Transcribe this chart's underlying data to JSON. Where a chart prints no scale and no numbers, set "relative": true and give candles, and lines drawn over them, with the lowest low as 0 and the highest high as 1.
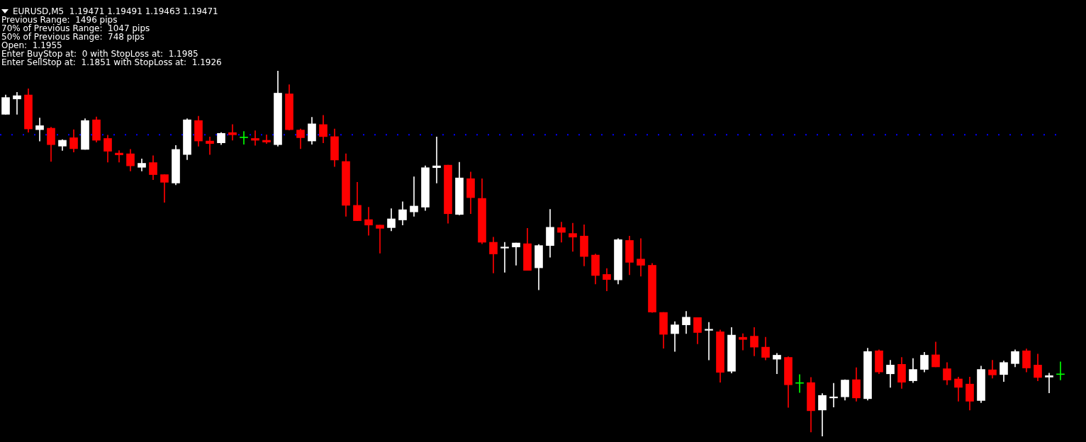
{
  "chart_data": {
    "type": "candlestick",
    "relative": true,
    "title": "EURUSD,M5  1.19471 1.19491 1.19463 1.19471",
    "annotations": [
      "Previous Range:  1496 pips",
      "70% of Previous Range:  1047 pips",
      "50% of Previous Range:  748 pips",
      "Open:  1.1955",
      "Enter BuyStop at:  0 with StopLoss at:  1.1985",
      "Enter SellStop at:  1.1851 with StopLoss at:  1.1926"
    ],
    "categories": [
      null,
      null,
      null,
      null,
      null,
      null,
      null,
      null,
      null,
      null,
      null,
      null,
      null,
      null,
      null,
      null,
      null,
      null,
      null,
      null,
      null,
      null,
      null,
      null,
      null,
      null,
      null,
      null,
      null,
      null,
      null,
      null,
      null,
      null,
      null,
      null,
      null,
      null,
      null,
      null,
      null,
      null,
      null,
      null,
      null,
      null,
      null,
      null,
      null,
      null,
      null,
      null,
      null,
      null,
      null,
      null,
      null,
      null,
      null,
      null,
      null,
      null,
      null,
      null,
      null,
      null,
      null,
      null,
      null,
      null,
      null,
      null,
      null,
      null,
      null,
      null,
      null,
      null,
      null,
      null,
      null,
      null,
      null,
      null,
      null,
      null,
      null,
      null,
      null,
      null,
      null,
      null,
      null,
      null
    ],
    "ohlc": [
      [
        0.881,
        0.934,
        0.881,
        0.927
      ],
      [
        0.923,
        0.941,
        0.881,
        0.932
      ],
      [
        0.934,
        0.951,
        0.832,
        0.841
      ],
      [
        0.839,
        0.871,
        0.808,
        0.85
      ],
      [
        0.843,
        0.846,
        0.752,
        0.798
      ],
      [
        0.794,
        0.812,
        0.782,
        0.81
      ],
      [
        0.817,
        0.839,
        0.778,
        0.787
      ],
      [
        0.785,
        0.869,
        0.785,
        0.864
      ],
      [
        0.866,
        0.874,
        0.805,
        0.81
      ],
      [
        0.815,
        0.824,
        0.75,
        0.78
      ],
      [
        0.775,
        0.782,
        0.75,
        0.77
      ],
      [
        0.773,
        0.785,
        0.726,
        0.74
      ],
      [
        0.736,
        0.759,
        0.726,
        0.747
      ],
      [
        0.749,
        0.768,
        0.702,
        0.716
      ],
      [
        0.716,
        0.716,
        0.64,
        0.695
      ],
      [
        0.693,
        0.796,
        0.688,
        0.785
      ],
      [
        0.771,
        0.869,
        0.757,
        0.866
      ],
      [
        0.864,
        0.876,
        0.794,
        0.808
      ],
      [
        0.808,
        0.819,
        0.771,
        0.801
      ],
      [
        0.803,
        0.831,
        0.798,
        0.829
      ],
      [
        0.831,
        0.853,
        0.81,
        0.825
      ],
      [
        0.817,
        0.834,
        0.799,
        0.817
      ],
      [
        0.815,
        0.836,
        0.796,
        0.81
      ],
      [
        0.81,
        0.825,
        0.801,
        0.805
      ],
      [
        0.798,
        1,
        0.794,
        0.939
      ],
      [
        0.937,
        0.962,
        0.838,
        0.839
      ],
      [
        0.838,
        0.841,
        0.787,
        0.817
      ],
      [
        0.808,
        0.873,
        0.799,
        0.855
      ],
      [
        0.853,
        0.878,
        0.803,
        0.82
      ],
      [
        0.82,
        0.841,
        0.738,
        0.756
      ],
      [
        0.752,
        0.773,
        0.602,
        0.632
      ],
      [
        0.632,
        0.695,
        0.59,
        0.59
      ],
      [
        0.593,
        0.627,
        0.55,
        0.578
      ],
      [
        0.578,
        0.578,
        0.501,
        0.569
      ],
      [
        0.571,
        0.623,
        0.562,
        0.595
      ],
      [
        0.592,
        0.642,
        0.578,
        0.62
      ],
      [
        0.614,
        0.71,
        0.602,
        0.63
      ],
      [
        0.627,
        0.74,
        0.618,
        0.735
      ],
      [
        0.735,
        0.819,
        0.693,
        0.74
      ],
      [
        0.742,
        0.742,
        0.583,
        0.609
      ],
      [
        0.607,
        0.75,
        0.606,
        0.707
      ],
      [
        0.705,
        0.723,
        0.609,
        0.653
      ],
      [
        0.651,
        0.705,
        0.527,
        0.531
      ],
      [
        0.531,
        0.545,
        0.447,
        0.499
      ],
      [
        0.515,
        0.531,
        0.449,
        0.518
      ],
      [
        0.518,
        0.529,
        0.468,
        0.529
      ],
      [
        0.527,
        0.569,
        0.454,
        0.454
      ],
      [
        0.461,
        0.525,
        0.401,
        0.522
      ],
      [
        0.522,
        0.621,
        0.49,
        0.572
      ],
      [
        0.571,
        0.586,
        0.531,
        0.558
      ],
      [
        0.555,
        0.583,
        0.506,
        0.545
      ],
      [
        0.548,
        0.579,
        0.466,
        0.492
      ],
      [
        0.496,
        0.499,
        0.417,
        0.44
      ],
      [
        0.443,
        0.459,
        0.398,
        0.429
      ],
      [
        0.428,
        0.541,
        0.417,
        0.538
      ],
      [
        0.536,
        0.548,
        0.442,
        0.476
      ],
      [
        0.485,
        0.541,
        0.438,
        0.468
      ],
      [
        0.468,
        0.473,
        0.339,
        0.34
      ],
      [
        0.339,
        0.339,
        0.241,
        0.279
      ],
      [
        0.281,
        0.314,
        0.232,
        0.305
      ],
      [
        0.305,
        0.342,
        0.281,
        0.326
      ],
      [
        0.325,
        0.325,
        0.253,
        0.284
      ],
      [
        0.29,
        0.312,
        0.209,
        0.293
      ],
      [
        0.286,
        0.291,
        0.148,
        0.175
      ],
      [
        0.178,
        0.298,
        0.173,
        0.277
      ],
      [
        0.271,
        0.281,
        0.236,
        0.265
      ],
      [
        0.274,
        0.298,
        0.22,
        0.244
      ],
      [
        0.244,
        0.271,
        0.209,
        0.216
      ],
      [
        0.211,
        0.227,
        0.171,
        0.222
      ],
      [
        0.216,
        0.218,
        0.079,
        0.141
      ],
      [
        0.145,
        0.169,
        0.12,
        0.145
      ],
      [
        0.147,
        0.161,
        0.012,
        0.07
      ],
      [
        0.072,
        0.117,
        0,
        0.112
      ],
      [
        0.105,
        0.145,
        0.08,
        0.108
      ],
      [
        0.108,
        0.155,
        0.099,
        0.154
      ],
      [
        0.155,
        0.188,
        0.096,
        0.105
      ],
      [
        0.103,
        0.241,
        0.099,
        0.232
      ],
      [
        0.234,
        0.237,
        0.171,
        0.176
      ],
      [
        0.171,
        0.208,
        0.134,
        0.195
      ],
      [
        0.197,
        0.216,
        0.131,
        0.148
      ],
      [
        0.152,
        0.213,
        0.147,
        0.183
      ],
      [
        0.183,
        0.23,
        0.176,
        0.222
      ],
      [
        0.223,
        0.258,
        0.19,
        0.19
      ],
      [
        0.185,
        0.202,
        0.141,
        0.154
      ],
      [
        0.157,
        0.162,
        0.096,
        0.134
      ],
      [
        0.143,
        0.162,
        0.072,
        0.096
      ],
      [
        0.098,
        0.192,
        0.092,
        0.183
      ],
      [
        0.182,
        0.208,
        0.159,
        0.168
      ],
      [
        0.169,
        0.206,
        0.15,
        0.202
      ],
      [
        0.199,
        0.237,
        0.19,
        0.232
      ],
      [
        0.234,
        0.239,
        0.176,
        0.187
      ],
      [
        0.195,
        0.225,
        0.152,
        0.161
      ],
      [
        0.162,
        0.173,
        0.119,
        0.166
      ],
      [
        0.169,
        0.204,
        0.154,
        0.169
      ]
    ],
    "colors": [
      "#ffffff",
      "#ffffff",
      "#ff0000",
      "#ffffff",
      "#ff0000",
      "#ffffff",
      "#ff0000",
      "#ffffff",
      "#ff0000",
      "#ff0000",
      "#ff0000",
      "#ff0000",
      "#ffffff",
      "#ff0000",
      "#ff0000",
      "#ffffff",
      "#ffffff",
      "#ff0000",
      "#ff0000",
      "#ffffff",
      "#ff0000",
      "#00ff00",
      "#ff0000",
      "#ff0000",
      "#ffffff",
      "#ff0000",
      "#ff0000",
      "#ffffff",
      "#ff0000",
      "#ff0000",
      "#ff0000",
      "#ff0000",
      "#ff0000",
      "#ff0000",
      "#ffffff",
      "#ffffff",
      "#ffffff",
      "#ffffff",
      "#ffffff",
      "#ff0000",
      "#ffffff",
      "#ff0000",
      "#ff0000",
      "#ff0000",
      "#ffffff",
      "#ffffff",
      "#ff0000",
      "#ffffff",
      "#ffffff",
      "#ff0000",
      "#ff0000",
      "#ff0000",
      "#ff0000",
      "#ff0000",
      "#ffffff",
      "#ff0000",
      "#ff0000",
      "#ff0000",
      "#ff0000",
      "#ffffff",
      "#ffffff",
      "#ff0000",
      "#ffffff",
      "#ff0000",
      "#ffffff",
      "#ff0000",
      "#ff0000",
      "#ff0000",
      "#ffffff",
      "#ff0000",
      "#00ff00",
      "#ff0000",
      "#ffffff",
      "#ffffff",
      "#ffffff",
      "#ff0000",
      "#ffffff",
      "#ff0000",
      "#ffffff",
      "#ff0000",
      "#ffffff",
      "#ffffff",
      "#ff0000",
      "#ff0000",
      "#ff0000",
      "#ff0000",
      "#ffffff",
      "#ff0000",
      "#ffffff",
      "#ffffff",
      "#ff0000",
      "#ff0000",
      "#ffffff",
      "#00ff00"
    ],
    "ref_lines": [
      {
        "axis": "y",
        "value": 0.825,
        "color": "#0000ff",
        "line_style": "dotted"
      }
    ]
  }
}
